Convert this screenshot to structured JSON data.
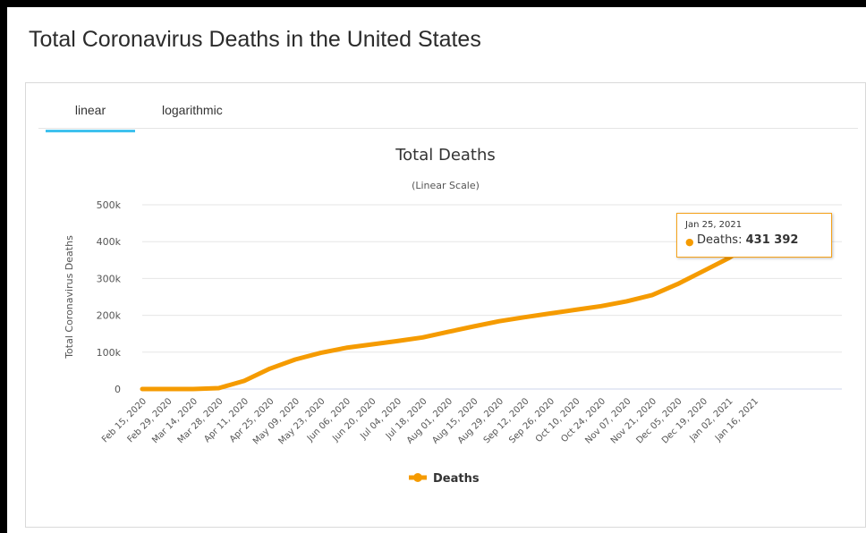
{
  "page": {
    "title": "Total Coronavirus Deaths in the United States",
    "tabs": [
      {
        "label": "linear",
        "active": true
      },
      {
        "label": "logarithmic",
        "active": false
      }
    ]
  },
  "tooltip": {
    "date": "Jan 25, 2021",
    "series": "Deaths",
    "value": "431 392"
  },
  "colors": {
    "series": "#f59b00",
    "tab_underline": "#3fc1ee"
  },
  "chart_data": {
    "type": "line",
    "title": "Total Deaths",
    "subtitle": "(Linear Scale)",
    "ylabel": "Total Coronavirus Deaths",
    "xlabel": "",
    "ylim": [
      0,
      500000
    ],
    "y_ticks": [
      "0",
      "100k",
      "200k",
      "300k",
      "400k",
      "500k"
    ],
    "grid": true,
    "legend": "bottom-center",
    "x": [
      "Feb 15, 2020",
      "Feb 29, 2020",
      "Mar 14, 2020",
      "Mar 28, 2020",
      "Apr 11, 2020",
      "Apr 25, 2020",
      "May 09, 2020",
      "May 23, 2020",
      "Jun 06, 2020",
      "Jun 20, 2020",
      "Jul 04, 2020",
      "Jul 18, 2020",
      "Aug 01, 2020",
      "Aug 15, 2020",
      "Aug 29, 2020",
      "Sep 12, 2020",
      "Sep 26, 2020",
      "Oct 10, 2020",
      "Oct 24, 2020",
      "Nov 07, 2020",
      "Nov 21, 2020",
      "Dec 05, 2020",
      "Dec 19, 2020",
      "Jan 02, 2021",
      "Jan 16, 2021",
      "Jan 25, 2021"
    ],
    "series": [
      {
        "name": "Deaths",
        "values": [
          0,
          1,
          60,
          2500,
          22000,
          55000,
          80000,
          98000,
          112000,
          121000,
          130000,
          140000,
          155000,
          170000,
          184000,
          195000,
          205000,
          215000,
          225000,
          238000,
          255000,
          285000,
          320000,
          355000,
          400000,
          431392
        ]
      }
    ]
  }
}
